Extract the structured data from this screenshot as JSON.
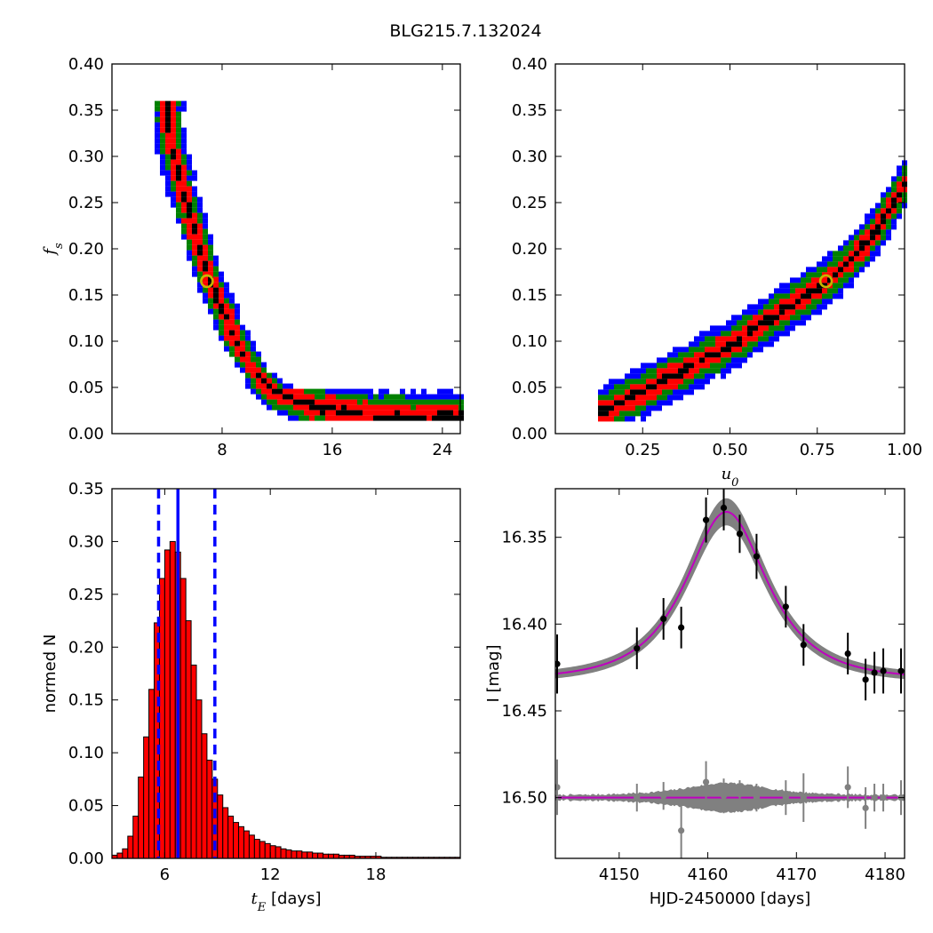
{
  "figure": {
    "title": "BLG215.7.132024"
  },
  "chart_data": [
    {
      "type": "heatmap",
      "name": "fs-vs-tE",
      "xlabel": "",
      "ylabel": "f_s",
      "xlim": [
        0,
        25.3
      ],
      "ylim": [
        0.0,
        0.4
      ],
      "xticks": [
        8,
        16,
        24
      ],
      "yticks": [
        0.0,
        0.05,
        0.1,
        0.15,
        0.2,
        0.25,
        0.3,
        0.35,
        0.4
      ],
      "levels": [
        {
          "name": "outer",
          "color": "#0000ff",
          "spread": 1.1
        },
        {
          "name": "middle",
          "color": "#008000",
          "spread": 0.8
        },
        {
          "name": "inner",
          "color": "#ff0000",
          "spread": 0.5
        },
        {
          "name": "core",
          "color": "#000000",
          "spread": 0.14
        }
      ],
      "ridge": [
        [
          4.1,
          0.33
        ],
        [
          4.5,
          0.3
        ],
        [
          5.0,
          0.27
        ],
        [
          5.6,
          0.24
        ],
        [
          6.2,
          0.21
        ],
        [
          6.8,
          0.18
        ],
        [
          7.4,
          0.155
        ],
        [
          8.2,
          0.13
        ],
        [
          9.0,
          0.1
        ],
        [
          10.0,
          0.075
        ],
        [
          11.5,
          0.05
        ],
        [
          13.5,
          0.035
        ],
        [
          16.0,
          0.025
        ],
        [
          19.0,
          0.02
        ],
        [
          21.5,
          0.018
        ]
      ],
      "best_fit": {
        "x": 6.9,
        "y": 0.165
      },
      "colors": {
        "marker": "#c8b400"
      }
    },
    {
      "type": "heatmap",
      "name": "fs-vs-u0",
      "xlabel": "u_0",
      "ylabel": "",
      "xlim": [
        0.0,
        1.0
      ],
      "ylim": [
        0.0,
        0.4
      ],
      "xticks": [
        0.25,
        0.5,
        0.75,
        1.0
      ],
      "yticks": [
        0.0,
        0.05,
        0.1,
        0.15,
        0.2,
        0.25,
        0.3,
        0.35,
        0.4
      ],
      "levels": [
        {
          "name": "outer",
          "color": "#0000ff",
          "spread": 0.028
        },
        {
          "name": "middle",
          "color": "#008000",
          "spread": 0.02
        },
        {
          "name": "inner",
          "color": "#ff0000",
          "spread": 0.012
        },
        {
          "name": "core",
          "color": "#000000",
          "spread": 0.004
        }
      ],
      "ridge": [
        [
          0.12,
          0.02
        ],
        [
          0.2,
          0.035
        ],
        [
          0.3,
          0.055
        ],
        [
          0.4,
          0.075
        ],
        [
          0.5,
          0.095
        ],
        [
          0.6,
          0.12
        ],
        [
          0.7,
          0.145
        ],
        [
          0.78,
          0.165
        ],
        [
          0.85,
          0.19
        ],
        [
          0.92,
          0.22
        ],
        [
          0.97,
          0.25
        ],
        [
          1.0,
          0.27
        ]
      ],
      "best_fit": {
        "x": 0.775,
        "y": 0.165
      },
      "colors": {
        "marker": "#c8b400"
      }
    },
    {
      "type": "bar",
      "name": "tE-histogram",
      "xlabel": "t_E  [days]",
      "ylabel": "normed N",
      "xlim": [
        3.0,
        22.8
      ],
      "ylim": [
        0.0,
        0.35
      ],
      "xticks": [
        6,
        12,
        18
      ],
      "yticks": [
        0.0,
        0.05,
        0.1,
        0.15,
        0.2,
        0.25,
        0.3,
        0.35
      ],
      "bin_start": 3.0,
      "bin_width": 0.3,
      "values": [
        0.003,
        0.005,
        0.009,
        0.021,
        0.04,
        0.077,
        0.115,
        0.16,
        0.223,
        0.265,
        0.292,
        0.3,
        0.29,
        0.265,
        0.225,
        0.183,
        0.15,
        0.118,
        0.093,
        0.075,
        0.06,
        0.048,
        0.04,
        0.034,
        0.03,
        0.026,
        0.022,
        0.018,
        0.016,
        0.014,
        0.012,
        0.011,
        0.009,
        0.008,
        0.007,
        0.007,
        0.006,
        0.006,
        0.005,
        0.005,
        0.004,
        0.004,
        0.004,
        0.003,
        0.003,
        0.003,
        0.002,
        0.002,
        0.002,
        0.002,
        0.002,
        0.001,
        0.001,
        0.001,
        0.001,
        0.001,
        0.001,
        0.001,
        0.001,
        0.001,
        0.001,
        0.001,
        0.001,
        0.001,
        0.001,
        0.001
      ],
      "median": 6.75,
      "bounds": [
        5.65,
        8.85
      ],
      "colors": {
        "bar": "#ff0000",
        "lines": "#0000ff"
      }
    },
    {
      "type": "line",
      "name": "lightcurve",
      "xlabel": "HJD-2450000 [days]",
      "ylabel": "I [mag]",
      "xlim": [
        4142.8,
        4182.2
      ],
      "ylim": [
        16.535,
        16.322
      ],
      "xticks": [
        4150,
        4160,
        4170,
        4180
      ],
      "yticks": [
        16.35,
        16.4,
        16.45,
        16.5
      ],
      "model": {
        "t0": 4162.1,
        "tE": 6.9,
        "u0": 0.775,
        "fs": 0.165,
        "baseline": 16.432
      },
      "points": [
        {
          "x": 4143.0,
          "y": 16.423,
          "err": 0.017
        },
        {
          "x": 4152.0,
          "y": 16.414,
          "err": 0.012
        },
        {
          "x": 4155.0,
          "y": 16.397,
          "err": 0.012
        },
        {
          "x": 4157.0,
          "y": 16.402,
          "err": 0.012
        },
        {
          "x": 4159.8,
          "y": 16.34,
          "err": 0.013
        },
        {
          "x": 4161.8,
          "y": 16.333,
          "err": 0.013
        },
        {
          "x": 4163.6,
          "y": 16.348,
          "err": 0.011
        },
        {
          "x": 4165.5,
          "y": 16.361,
          "err": 0.013
        },
        {
          "x": 4168.8,
          "y": 16.39,
          "err": 0.012
        },
        {
          "x": 4170.8,
          "y": 16.412,
          "err": 0.012
        },
        {
          "x": 4175.8,
          "y": 16.417,
          "err": 0.012
        },
        {
          "x": 4177.8,
          "y": 16.432,
          "err": 0.012
        },
        {
          "x": 4178.8,
          "y": 16.428,
          "err": 0.012
        },
        {
          "x": 4179.8,
          "y": 16.427,
          "err": 0.013
        },
        {
          "x": 4181.8,
          "y": 16.427,
          "err": 0.013
        }
      ],
      "residual_baseline": 16.5,
      "residuals": [
        {
          "x": 4143.0,
          "y": 16.494,
          "err": 0.016
        },
        {
          "x": 4152.0,
          "y": 16.5,
          "err": 0.008
        },
        {
          "x": 4155.0,
          "y": 16.499,
          "err": 0.008
        },
        {
          "x": 4157.0,
          "y": 16.519,
          "err": 0.018
        },
        {
          "x": 4159.8,
          "y": 16.491,
          "err": 0.012
        },
        {
          "x": 4161.8,
          "y": 16.499,
          "err": 0.01
        },
        {
          "x": 4163.6,
          "y": 16.498,
          "err": 0.008
        },
        {
          "x": 4165.5,
          "y": 16.5,
          "err": 0.008
        },
        {
          "x": 4168.8,
          "y": 16.5,
          "err": 0.01
        },
        {
          "x": 4170.8,
          "y": 16.5,
          "err": 0.014
        },
        {
          "x": 4175.8,
          "y": 16.494,
          "err": 0.012
        },
        {
          "x": 4177.8,
          "y": 16.506,
          "err": 0.012
        },
        {
          "x": 4178.8,
          "y": 16.5,
          "err": 0.008
        },
        {
          "x": 4179.8,
          "y": 16.5,
          "err": 0.008
        },
        {
          "x": 4181.8,
          "y": 16.5,
          "err": 0.01
        }
      ],
      "colors": {
        "model": "#bf00bf",
        "band": "#808080",
        "points": "#000000",
        "residuals": "#808080"
      }
    }
  ]
}
